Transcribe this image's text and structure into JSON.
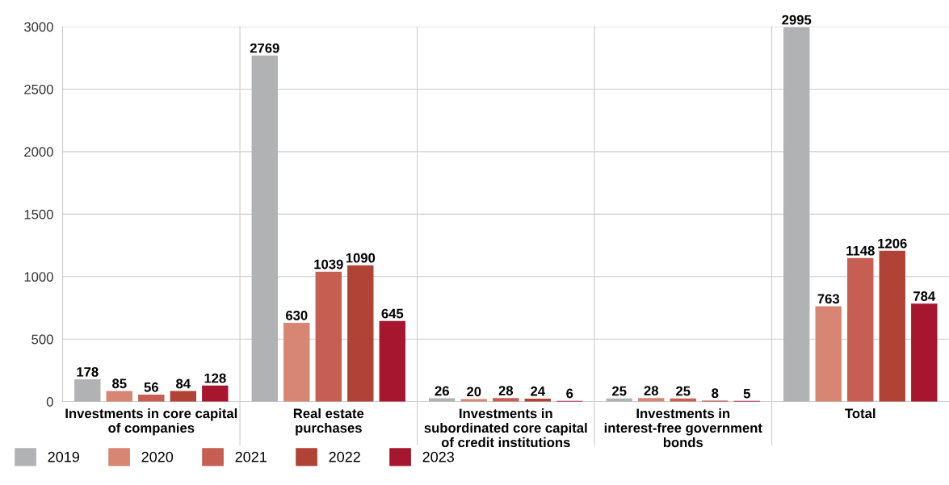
{
  "chart_data": {
    "type": "bar",
    "categories": [
      "Investments in core capital\nof companies",
      "Real estate\npurchases",
      "Investments in\nsubordinated core capital\nof credit institutions",
      "Investments in\ninterest-free government\nbonds",
      "Total"
    ],
    "series": [
      {
        "name": "2019",
        "color": "#b1b2b4",
        "values": [
          178,
          2769,
          26,
          25,
          2995
        ]
      },
      {
        "name": "2020",
        "color": "#d68672",
        "values": [
          85,
          630,
          20,
          28,
          763
        ]
      },
      {
        "name": "2021",
        "color": "#c65e53",
        "values": [
          56,
          1039,
          28,
          25,
          1148
        ]
      },
      {
        "name": "2022",
        "color": "#b04236",
        "values": [
          84,
          1090,
          24,
          8,
          1206
        ]
      },
      {
        "name": "2023",
        "color": "#a6162e",
        "values": [
          128,
          645,
          6,
          5,
          784
        ]
      }
    ],
    "ylim": [
      0,
      3000
    ],
    "yticks": [
      0,
      500,
      1000,
      1500,
      2000,
      2500,
      3000
    ],
    "grid": "y",
    "legend": "bottom left",
    "data_labels": true
  }
}
